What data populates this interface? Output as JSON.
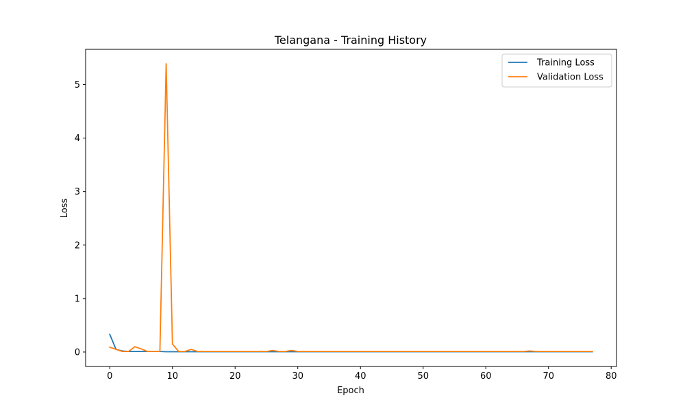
{
  "chart_data": {
    "type": "line",
    "title": "Telangana - Training History",
    "xlabel": "Epoch",
    "ylabel": "Loss",
    "xlim": [
      -3.85,
      80.85
    ],
    "ylim": [
      -0.27,
      5.66
    ],
    "xticks": [
      0,
      10,
      20,
      30,
      40,
      50,
      60,
      70,
      80
    ],
    "yticks": [
      0,
      1,
      2,
      3,
      4,
      5
    ],
    "grid": false,
    "legend_position": "top-right",
    "series": [
      {
        "name": "Training Loss",
        "color": "#1f77b4",
        "x": [
          0,
          1,
          2,
          3,
          4,
          5,
          6,
          7,
          8,
          9,
          10,
          11,
          12,
          13,
          14,
          15,
          16,
          17,
          18,
          19,
          20,
          21,
          22,
          23,
          24,
          25,
          26,
          27,
          28,
          29,
          30,
          31,
          32,
          33,
          34,
          35,
          36,
          37,
          38,
          39,
          40,
          41,
          42,
          43,
          44,
          45,
          46,
          47,
          48,
          49,
          50,
          51,
          52,
          53,
          54,
          55,
          56,
          57,
          58,
          59,
          60,
          61,
          62,
          63,
          64,
          65,
          66,
          67,
          68,
          69,
          70,
          71,
          72,
          73,
          74,
          75,
          76,
          77
        ],
        "values": [
          0.33,
          0.05,
          0.02,
          0.01,
          0.01,
          0.01,
          0.01,
          0.01,
          0.01,
          0.005,
          0.005,
          0.005,
          0.005,
          0.005,
          0.005,
          0.005,
          0.005,
          0.005,
          0.005,
          0.005,
          0.005,
          0.005,
          0.005,
          0.005,
          0.005,
          0.005,
          0.005,
          0.005,
          0.005,
          0.005,
          0.005,
          0.005,
          0.005,
          0.005,
          0.005,
          0.005,
          0.005,
          0.005,
          0.005,
          0.005,
          0.005,
          0.005,
          0.005,
          0.005,
          0.005,
          0.005,
          0.005,
          0.005,
          0.005,
          0.005,
          0.005,
          0.005,
          0.005,
          0.005,
          0.005,
          0.005,
          0.005,
          0.005,
          0.005,
          0.005,
          0.005,
          0.005,
          0.005,
          0.005,
          0.005,
          0.005,
          0.005,
          0.005,
          0.005,
          0.005,
          0.005,
          0.005,
          0.005,
          0.005,
          0.005,
          0.005,
          0.005,
          0.005
        ]
      },
      {
        "name": "Validation Loss",
        "color": "#ff7f0e",
        "x": [
          0,
          1,
          2,
          3,
          4,
          5,
          6,
          7,
          8,
          9,
          10,
          11,
          12,
          13,
          14,
          15,
          16,
          17,
          18,
          19,
          20,
          21,
          22,
          23,
          24,
          25,
          26,
          27,
          28,
          29,
          30,
          31,
          32,
          33,
          34,
          35,
          36,
          37,
          38,
          39,
          40,
          41,
          42,
          43,
          44,
          45,
          46,
          47,
          48,
          49,
          50,
          51,
          52,
          53,
          54,
          55,
          56,
          57,
          58,
          59,
          60,
          61,
          62,
          63,
          64,
          65,
          66,
          67,
          68,
          69,
          70,
          71,
          72,
          73,
          74,
          75,
          76,
          77
        ],
        "values": [
          0.09,
          0.05,
          0.01,
          0.01,
          0.1,
          0.06,
          0.01,
          0.01,
          0.01,
          5.39,
          0.15,
          0.01,
          0.01,
          0.05,
          0.01,
          0.01,
          0.01,
          0.01,
          0.01,
          0.01,
          0.01,
          0.01,
          0.01,
          0.01,
          0.01,
          0.01,
          0.03,
          0.01,
          0.01,
          0.03,
          0.01,
          0.01,
          0.01,
          0.01,
          0.01,
          0.01,
          0.01,
          0.01,
          0.01,
          0.01,
          0.01,
          0.01,
          0.01,
          0.01,
          0.01,
          0.01,
          0.01,
          0.01,
          0.01,
          0.01,
          0.01,
          0.01,
          0.01,
          0.01,
          0.01,
          0.01,
          0.01,
          0.01,
          0.01,
          0.01,
          0.01,
          0.01,
          0.01,
          0.01,
          0.01,
          0.01,
          0.01,
          0.02,
          0.01,
          0.01,
          0.01,
          0.01,
          0.01,
          0.01,
          0.01,
          0.01,
          0.01,
          0.01
        ]
      }
    ]
  }
}
